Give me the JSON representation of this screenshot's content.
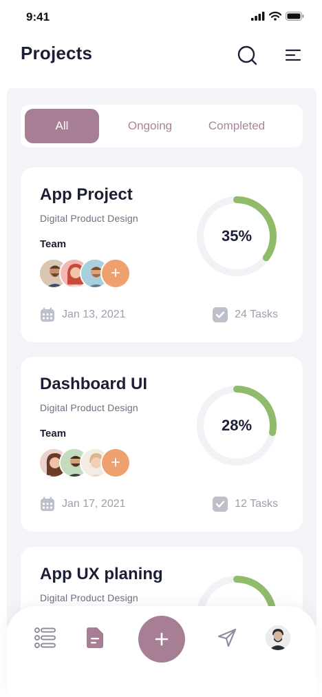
{
  "status_bar": {
    "time": "9:41"
  },
  "header": {
    "title": "Projects",
    "search_icon": "search-icon",
    "menu_icon": "menu-icon"
  },
  "tabs": [
    {
      "label": "All",
      "active": true
    },
    {
      "label": "Ongoing",
      "active": false
    },
    {
      "label": "Completed",
      "active": false
    }
  ],
  "projects": [
    {
      "title": "App Project",
      "subtitle": "Digital Product Design",
      "team_label": "Team",
      "progress": 35,
      "progress_label": "35%",
      "date": "Jan 13, 2021",
      "tasks": "24 Tasks"
    },
    {
      "title": "Dashboard UI",
      "subtitle": "Digital Product Design",
      "team_label": "Team",
      "progress": 28,
      "progress_label": "28%",
      "date": "Jan 17, 2021",
      "tasks": "12 Tasks"
    },
    {
      "title": "App UX planing",
      "subtitle": "Digital Product Design",
      "progress": 25
    }
  ],
  "avatar_add_label": "+",
  "colors": {
    "accent": "#a67f94",
    "progress": "#8fbb6b",
    "track": "#f1f1f6",
    "add_avatar": "#eea16f"
  },
  "bottom_nav": {
    "items": [
      "list-icon",
      "document-icon",
      "plus-icon",
      "send-icon",
      "profile-avatar"
    ],
    "add_label": "+"
  }
}
